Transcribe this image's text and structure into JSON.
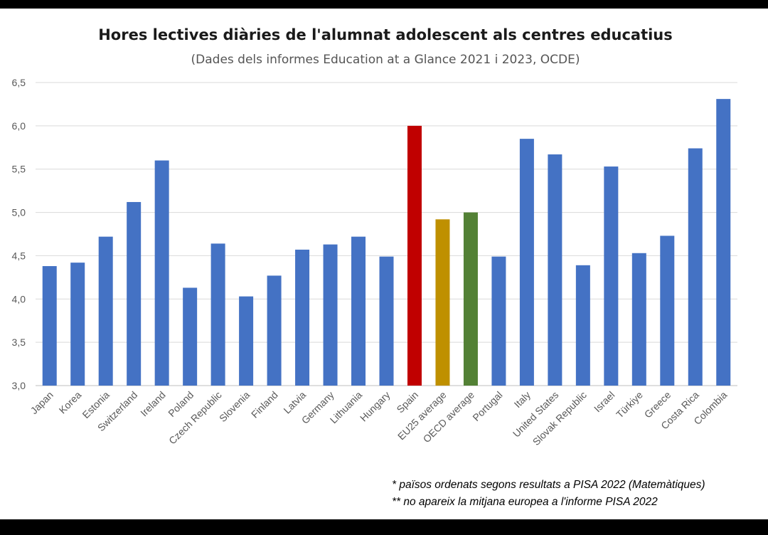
{
  "chart_data": {
    "type": "bar",
    "title": "Hores lectives diàries de l'alumnat adolescent als centres educatius",
    "subtitle": "(Dades dels informes Education at a Glance 2021 i 2023, OCDE)",
    "xlabel": "",
    "ylabel": "",
    "ylim": [
      3.0,
      6.5
    ],
    "yticks": [
      "3,0",
      "3,5",
      "4,0",
      "4,5",
      "5,0",
      "5,5",
      "6,0",
      "6,5"
    ],
    "grid": true,
    "categories": [
      "Japan",
      "Korea",
      "Estonia",
      "Switzerland",
      "Ireland",
      "Poland",
      "Czech Republic",
      "Slovenia",
      "Finland",
      "Latvia",
      "Germany",
      "Lithuania",
      "Hungary",
      "Spain",
      "EU25 average",
      "OECD average",
      "Portugal",
      "Italy",
      "United States",
      "Slovak Republic",
      "Israel",
      "Türkiye",
      "Greece",
      "Costa Rica",
      "Colombia"
    ],
    "values": [
      4.38,
      4.42,
      4.72,
      5.12,
      5.6,
      4.13,
      4.64,
      4.03,
      4.27,
      4.57,
      4.63,
      4.72,
      4.49,
      6.0,
      4.92,
      5.0,
      4.49,
      5.85,
      5.67,
      4.39,
      5.53,
      4.53,
      4.73,
      5.74,
      6.31
    ],
    "colors": {
      "default": "#4472c4",
      "Spain": "#c00000",
      "EU25 average": "#bf9000",
      "OECD average": "#538135"
    },
    "notes": [
      "* països ordenats segons resultats a PISA 2022 (Matemàtiques)",
      "** no apareix la mitjana europea a l'informe PISA 2022"
    ]
  }
}
